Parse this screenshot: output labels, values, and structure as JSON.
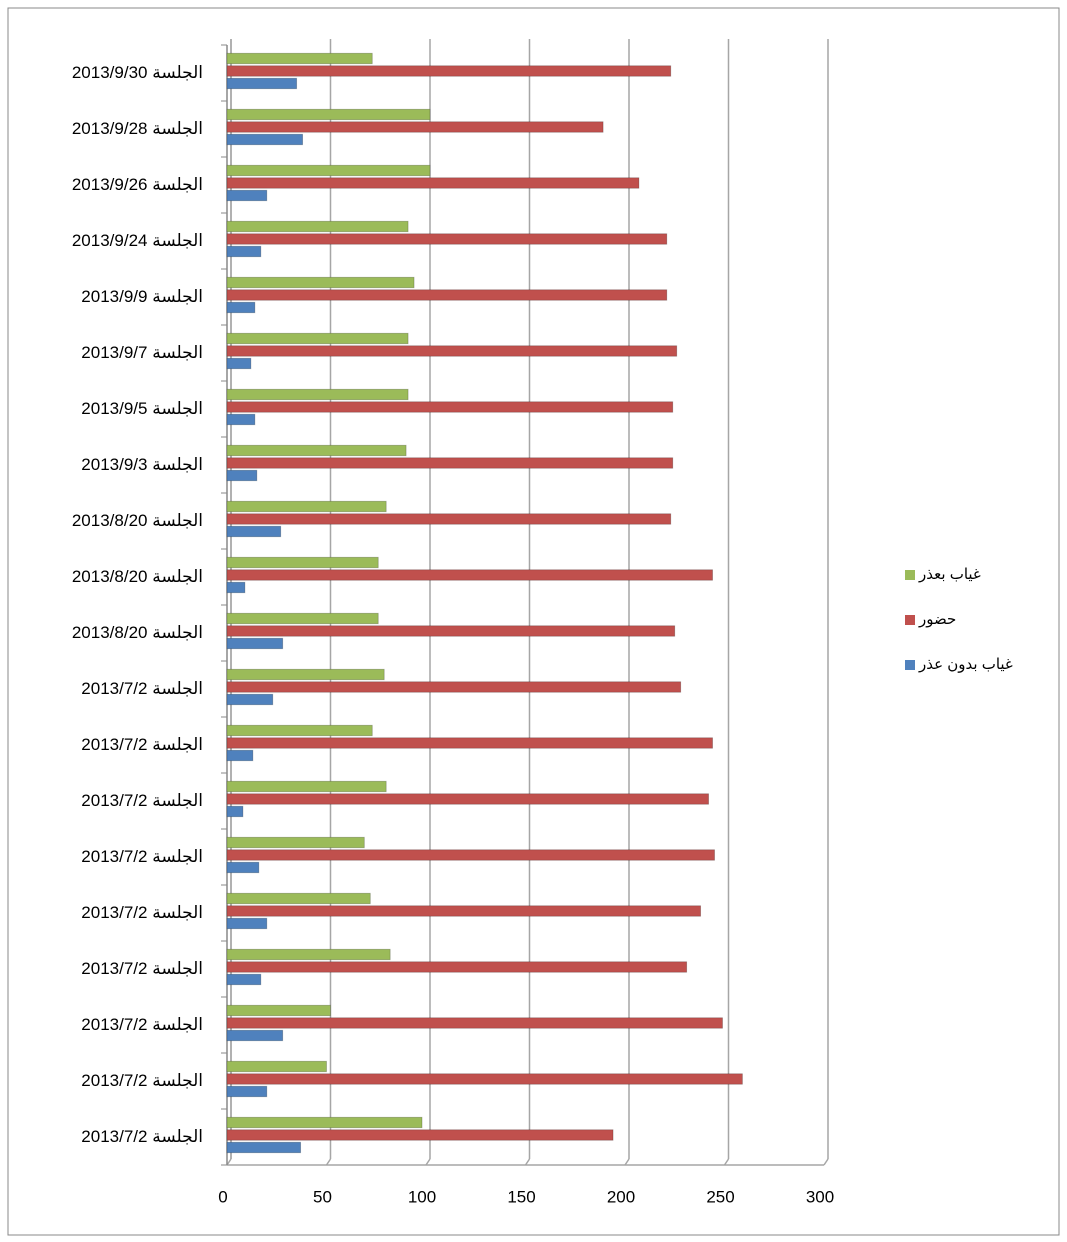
{
  "chart_data": {
    "type": "barh",
    "categories": [
      "الجلسة 2013/9/30",
      "الجلسة 2013/9/28",
      "الجلسة 2013/9/26",
      "الجلسة 2013/9/24",
      "الجلسة 2013/9/9",
      "الجلسة 2013/9/7",
      "الجلسة 2013/9/5",
      "الجلسة 2013/9/3",
      "الجلسة 2013/8/20",
      "الجلسة 2013/8/20",
      "الجلسة 2013/8/20",
      "الجلسة 2013/7/2",
      "الجلسة 2013/7/2",
      "الجلسة 2013/7/2",
      "الجلسة 2013/7/2",
      "الجلسة 2013/7/2",
      "الجلسة 2013/7/2",
      "الجلسة 2013/7/2",
      "الجلسة 2013/7/2",
      "الجلسة 2013/7/2"
    ],
    "series": [
      {
        "name": "غياب بعذر",
        "color": "#9bbb59",
        "values": [
          73,
          102,
          102,
          91,
          94,
          91,
          91,
          90,
          80,
          76,
          76,
          79,
          73,
          80,
          69,
          72,
          82,
          52,
          50,
          98
        ]
      },
      {
        "name": "حضور",
        "color": "#c0504d",
        "values": [
          223,
          189,
          207,
          221,
          221,
          226,
          224,
          224,
          223,
          244,
          225,
          228,
          244,
          242,
          245,
          238,
          231,
          249,
          259,
          194
        ]
      },
      {
        "name": "غياب بدون عذر",
        "color": "#4f81bd",
        "values": [
          35,
          38,
          20,
          17,
          14,
          12,
          14,
          15,
          27,
          9,
          28,
          23,
          13,
          8,
          16,
          20,
          17,
          28,
          20,
          37
        ]
      }
    ],
    "xlim": [
      0,
      300
    ],
    "xticks": [
      0,
      50,
      100,
      150,
      200,
      250,
      300
    ],
    "grid": true,
    "legend": "right"
  }
}
